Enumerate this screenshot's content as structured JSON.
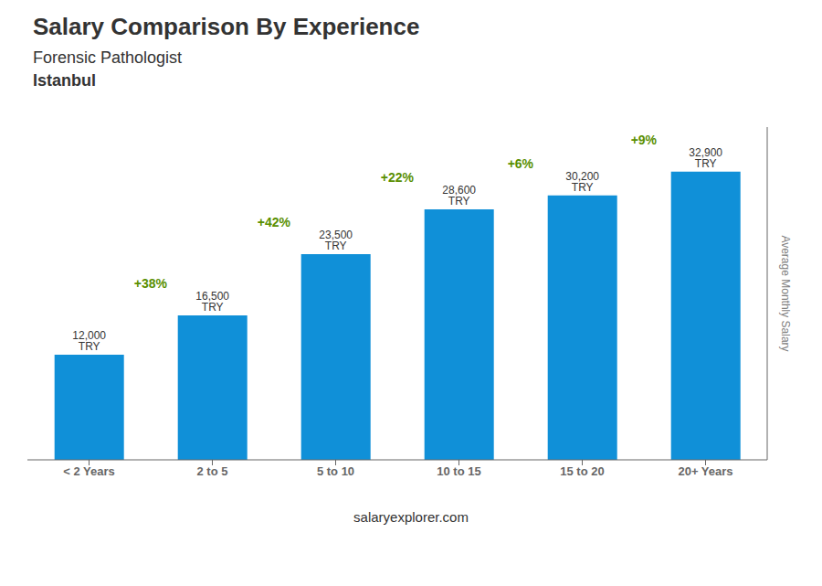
{
  "chart_data": {
    "type": "bar",
    "title": "Salary Comparison By Experience",
    "subtitle": "Forensic Pathologist",
    "annotations": [
      "Istanbul"
    ],
    "source": "salaryexplorer.com",
    "categories": [
      "< 2 Years",
      "2 to 5",
      "5 to 10",
      "10 to 15",
      "15 to 20",
      "20+ Years"
    ],
    "values": [
      12000,
      16500,
      23500,
      28600,
      30200,
      32900
    ],
    "value_labels": [
      "12,000 TRY",
      "16,500 TRY",
      "23,500 TRY",
      "28,600 TRY",
      "30,200 TRY",
      "32,900 TRY"
    ],
    "data_labels": true,
    "change_labels": [
      "+38%",
      "+42%",
      "+22%",
      "+6%",
      "+9%"
    ],
    "ylabel": "Average Monthly Salary",
    "ylim": [
      0,
      38000
    ],
    "tick_labels": "x",
    "grid": false,
    "color": "#1090D8"
  }
}
